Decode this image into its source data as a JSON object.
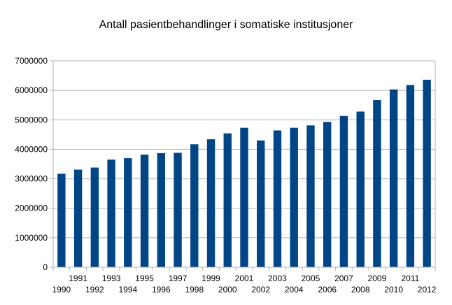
{
  "chart_data": {
    "type": "bar",
    "title": "Antall pasientbehandlinger i somatiske institusjoner",
    "xlabel": "",
    "ylabel": "",
    "ylim": [
      0,
      7000000
    ],
    "yticks": [
      0,
      1000000,
      2000000,
      3000000,
      4000000,
      5000000,
      6000000,
      7000000
    ],
    "grid": true,
    "legend": "none",
    "bar_color": "#004586",
    "categories": [
      "1990",
      "1991",
      "1992",
      "1993",
      "1994",
      "1995",
      "1996",
      "1997",
      "1998",
      "1999",
      "2000",
      "2001",
      "2002",
      "2003",
      "2004",
      "2005",
      "2006",
      "2007",
      "2008",
      "2009",
      "2010",
      "2011",
      "2012"
    ],
    "values": [
      3170000,
      3310000,
      3380000,
      3650000,
      3700000,
      3820000,
      3870000,
      3880000,
      4170000,
      4340000,
      4540000,
      4730000,
      4300000,
      4640000,
      4730000,
      4810000,
      4930000,
      5130000,
      5280000,
      5670000,
      6030000,
      6180000,
      6360000
    ]
  }
}
